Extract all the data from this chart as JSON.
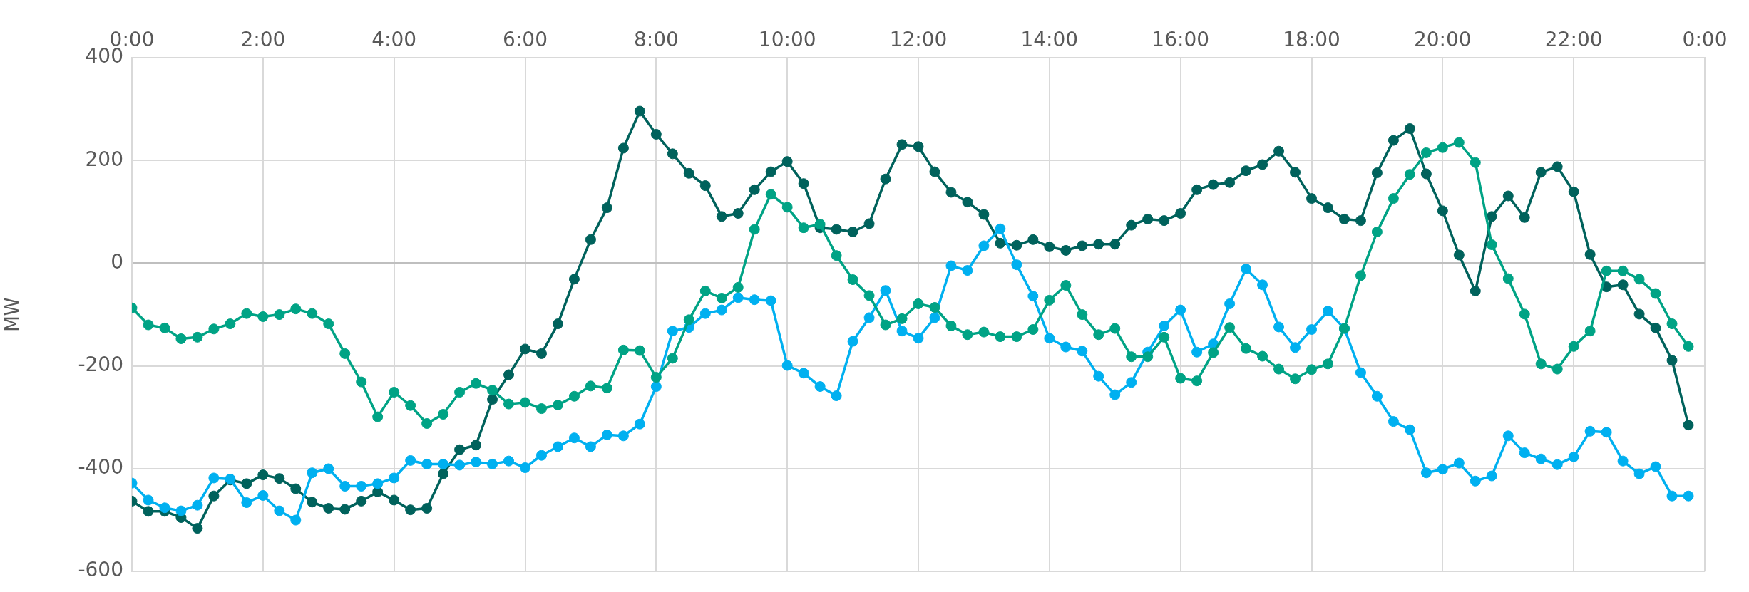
{
  "chart_data": {
    "type": "line",
    "ylabel": "MW",
    "x": [
      0,
      0.25,
      0.5,
      0.75,
      1,
      1.25,
      1.5,
      1.75,
      2,
      2.25,
      2.5,
      2.75,
      3,
      3.25,
      3.5,
      3.75,
      4,
      4.25,
      4.5,
      4.75,
      5,
      5.25,
      5.5,
      5.75,
      6,
      6.25,
      6.5,
      6.75,
      7,
      7.25,
      7.5,
      7.75,
      8,
      8.25,
      8.5,
      8.75,
      9,
      9.25,
      9.5,
      9.75,
      10,
      10.25,
      10.5,
      10.75,
      11,
      11.25,
      11.5,
      11.75,
      12,
      12.25,
      12.5,
      12.75,
      13,
      13.25,
      13.5,
      13.75,
      14,
      14.25,
      14.5,
      14.75,
      15,
      15.25,
      15.5,
      15.75,
      16,
      16.25,
      16.5,
      16.75,
      17,
      17.25,
      17.5,
      17.75,
      18,
      18.25,
      18.5,
      18.75,
      19,
      19.25,
      19.5,
      19.75,
      20,
      20.25,
      20.5,
      20.75,
      21,
      21.25,
      21.5,
      21.75,
      22,
      22.25,
      22.5,
      22.75,
      23,
      23.25,
      23.5,
      23.75
    ],
    "series": [
      {
        "color": "#00a385",
        "values": [
          -87,
          -120,
          -126,
          -147,
          -144,
          -128,
          -118,
          -98,
          -104,
          -100,
          -89,
          -98,
          -118,
          -176,
          -231,
          -299,
          -251,
          -277,
          -312,
          -294,
          -251,
          -234,
          -247,
          -274,
          -271,
          -283,
          -276,
          -259,
          -239,
          -243,
          -169,
          -170,
          -222,
          -185,
          -110,
          -54,
          -68,
          -47,
          66,
          134,
          109,
          69,
          76,
          15,
          -32,
          -63,
          -120,
          -108,
          -79,
          -86,
          -122,
          -139,
          -134,
          -143,
          -143,
          -129,
          -72,
          -43,
          -100,
          -139,
          -127,
          -182,
          -182,
          -144,
          -224,
          -229,
          -174,
          -125,
          -166,
          -181,
          -206,
          -225,
          -207,
          -196,
          -127,
          -24,
          61,
          126,
          173,
          215,
          225,
          235,
          196,
          36,
          -30,
          -99,
          -196,
          -206,
          -162,
          -132,
          -15,
          -15,
          -31,
          -59,
          -118,
          -162
        ]
      },
      {
        "color": "#00b0f0",
        "values": [
          -428,
          -461,
          -476,
          -482,
          -471,
          -418,
          -420,
          -466,
          -452,
          -482,
          -500,
          -408,
          -400,
          -434,
          -434,
          -429,
          -418,
          -384,
          -391,
          -391,
          -393,
          -387,
          -391,
          -385,
          -398,
          -374,
          -357,
          -340,
          -357,
          -334,
          -336,
          -313,
          -240,
          -132,
          -125,
          -98,
          -91,
          -67,
          -71,
          -73,
          -199,
          -214,
          -240,
          -258,
          -152,
          -106,
          -53,
          -132,
          -146,
          -106,
          -5,
          -14,
          34,
          67,
          -3,
          -64,
          -146,
          -163,
          -171,
          -220,
          -256,
          -232,
          -173,
          -122,
          -91,
          -173,
          -157,
          -79,
          -11,
          -42,
          -124,
          -164,
          -129,
          -93,
          -127,
          -213,
          -259,
          -308,
          -324,
          -408,
          -401,
          -389,
          -424,
          -414,
          -336,
          -369,
          -381,
          -392,
          -377,
          -327,
          -329,
          -385,
          -410,
          -396,
          -453,
          -453
        ]
      },
      {
        "color": "#00625c",
        "values": [
          -463,
          -483,
          -483,
          -495,
          -516,
          -453,
          -422,
          -429,
          -412,
          -419,
          -439,
          -465,
          -477,
          -479,
          -463,
          -445,
          -461,
          -480,
          -477,
          -410,
          -363,
          -354,
          -265,
          -217,
          -167,
          -176,
          -118,
          -31,
          46,
          108,
          224,
          296,
          251,
          213,
          175,
          151,
          91,
          97,
          143,
          178,
          198,
          155,
          69,
          66,
          61,
          77,
          164,
          231,
          227,
          178,
          138,
          119,
          95,
          39,
          35,
          46,
          32,
          25,
          34,
          37,
          37,
          74,
          86,
          83,
          97,
          143,
          153,
          157,
          180,
          192,
          218,
          177,
          126,
          108,
          86,
          83,
          176,
          239,
          262,
          174,
          102,
          16,
          -54,
          91,
          131,
          89,
          177,
          188,
          139,
          17,
          -46,
          -42,
          -99,
          -126,
          -189,
          -315
        ]
      }
    ],
    "xlim": [
      0,
      24
    ],
    "xticks": [
      {
        "value": 0,
        "label": "0:00"
      },
      {
        "value": 2,
        "label": "2:00"
      },
      {
        "value": 4,
        "label": "4:00"
      },
      {
        "value": 6,
        "label": "6:00"
      },
      {
        "value": 8,
        "label": "8:00"
      },
      {
        "value": 10,
        "label": "10:00"
      },
      {
        "value": 12,
        "label": "12:00"
      },
      {
        "value": 14,
        "label": "14:00"
      },
      {
        "value": 16,
        "label": "16:00"
      },
      {
        "value": 18,
        "label": "18:00"
      },
      {
        "value": 20,
        "label": "20:00"
      },
      {
        "value": 22,
        "label": "22:00"
      },
      {
        "value": 24,
        "label": "0:00"
      }
    ],
    "ylim": [
      -600,
      400
    ],
    "yticks": [
      -600,
      -400,
      -200,
      0,
      200,
      400
    ],
    "grid": true,
    "legend": false,
    "marker": "circle",
    "line_style": "solid"
  }
}
